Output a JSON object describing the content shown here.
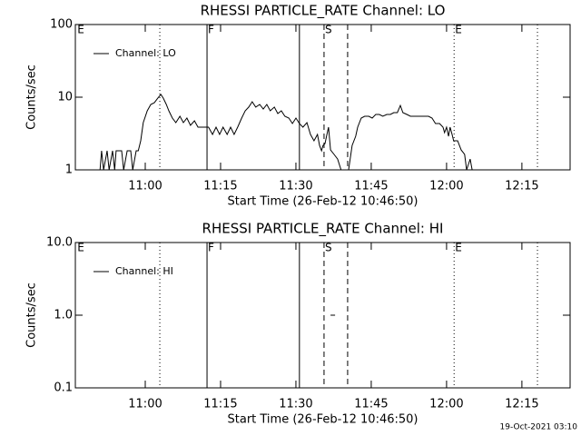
{
  "chart_data": [
    {
      "type": "line",
      "title": "RHESSI PARTICLE_RATE Channel: LO",
      "xlabel": "Start Time (26-Feb-12 10:46:50)",
      "ylabel": "Counts/sec",
      "xlim": [
        646.08,
        744.6
      ],
      "xticks": [
        {
          "value": 660,
          "label": "11:00"
        },
        {
          "value": 675,
          "label": "11:15"
        },
        {
          "value": 690,
          "label": "11:30"
        },
        {
          "value": 705,
          "label": "11:45"
        },
        {
          "value": 720,
          "label": "12:00"
        },
        {
          "value": 735,
          "label": "12:15"
        }
      ],
      "ylim": [
        1,
        100
      ],
      "yticks": [
        1,
        10,
        100
      ],
      "ylog": true,
      "legend": "upper left",
      "vlines": [
        {
          "x": 662.9,
          "style": "dotted"
        },
        {
          "x": 672.3,
          "style": "solid"
        },
        {
          "x": 690.7,
          "style": "solid"
        },
        {
          "x": 695.6,
          "style": "dashed"
        },
        {
          "x": 700.3,
          "style": "dashed"
        },
        {
          "x": 721.5,
          "style": "dotted"
        },
        {
          "x": 738.1,
          "style": "dotted"
        }
      ],
      "flags": [
        {
          "x": 646.3,
          "label": "E"
        },
        {
          "x": 672.3,
          "label": "F"
        },
        {
          "x": 695.6,
          "label": "S"
        },
        {
          "x": 721.5,
          "label": "E"
        }
      ],
      "series": [
        {
          "name": "Channel: LO",
          "color": "#000000",
          "x": [
            651.0,
            651.3,
            651.7,
            652.4,
            652.8,
            653.5,
            653.9,
            654.2,
            655.3,
            655.7,
            656.4,
            657.1,
            657.5,
            658.2,
            658.6,
            659.1,
            659.6,
            660.4,
            661.1,
            661.8,
            662.5,
            663.1,
            663.6,
            664.2,
            664.7,
            665.4,
            666.1,
            666.9,
            667.6,
            668.3,
            669.0,
            669.8,
            670.5,
            671.2,
            671.9,
            672.6,
            673.4,
            674.1,
            674.8,
            675.5,
            676.3,
            677.0,
            677.7,
            678.4,
            679.2,
            679.9,
            680.6,
            681.3,
            682.0,
            682.8,
            683.5,
            684.2,
            684.9,
            685.7,
            686.4,
            687.1,
            687.8,
            688.6,
            689.3,
            690.0,
            690.7,
            691.4,
            692.2,
            692.9,
            693.6,
            694.3,
            694.7,
            695.1,
            695.4,
            695.8,
            696.1,
            696.5,
            696.9,
            697.6,
            698.3,
            699.0,
            699.8,
            700.5,
            701.2,
            701.9,
            702.3,
            703.0,
            703.7,
            704.5,
            705.2,
            705.9,
            706.6,
            707.3,
            708.1,
            708.8,
            709.5,
            710.2,
            710.8,
            711.3,
            712.1,
            712.8,
            713.5,
            714.2,
            714.9,
            715.7,
            716.4,
            717.1,
            717.8,
            718.6,
            719.3,
            719.6,
            720.0,
            720.4,
            720.7,
            721.1,
            721.4,
            722.2,
            722.9,
            723.6,
            724.0,
            724.7,
            725.1
          ],
          "values": [
            1,
            1.83,
            1,
            1.83,
            1,
            1.83,
            1,
            1.83,
            1.83,
            1,
            1.83,
            1.83,
            1,
            1.83,
            1.83,
            2.51,
            4.47,
            6.49,
            7.94,
            8.4,
            9.7,
            10.9,
            9.7,
            7.94,
            6.49,
            5.16,
            4.47,
            5.46,
            4.47,
            5.16,
            4.1,
            4.73,
            3.87,
            3.87,
            3.87,
            3.87,
            3.07,
            3.87,
            3.07,
            3.87,
            3.07,
            3.87,
            3.07,
            3.87,
            5.16,
            6.49,
            7.3,
            8.66,
            7.3,
            7.94,
            6.87,
            7.94,
            6.49,
            7.3,
            5.96,
            6.49,
            5.46,
            5.16,
            4.34,
            5.16,
            4.34,
            3.87,
            4.47,
            3.07,
            2.51,
            3.07,
            2.17,
            1.83,
            2.17,
            2.3,
            2.9,
            3.87,
            1.88,
            1.63,
            1.41,
            1,
            1,
            1,
            2.17,
            2.9,
            3.87,
            5.16,
            5.46,
            5.46,
            5.16,
            5.79,
            5.79,
            5.46,
            5.79,
            5.79,
            6.13,
            6.13,
            7.7,
            6.13,
            5.79,
            5.46,
            5.46,
            5.46,
            5.46,
            5.46,
            5.46,
            5.16,
            4.34,
            4.34,
            3.87,
            3.25,
            3.87,
            2.9,
            3.87,
            3.07,
            2.51,
            2.51,
            1.88,
            1.63,
            1,
            1.41,
            1
          ]
        }
      ]
    },
    {
      "type": "line",
      "title": "RHESSI PARTICLE_RATE Channel: HI",
      "xlabel": "Start Time (26-Feb-12 10:46:50)",
      "ylabel": "Counts/sec",
      "xlim": [
        646.08,
        744.6
      ],
      "xticks": [
        {
          "value": 660,
          "label": "11:00"
        },
        {
          "value": 675,
          "label": "11:15"
        },
        {
          "value": 690,
          "label": "11:30"
        },
        {
          "value": 705,
          "label": "11:45"
        },
        {
          "value": 720,
          "label": "12:00"
        },
        {
          "value": 735,
          "label": "12:15"
        }
      ],
      "ylim": [
        0.1,
        10
      ],
      "yticks": [
        0.1,
        {
          "value": 1,
          "label": "1.0"
        },
        {
          "value": 10,
          "label": "10.0"
        }
      ],
      "ylog": true,
      "legend": "upper left",
      "vlines": [
        {
          "x": 662.9,
          "style": "dotted"
        },
        {
          "x": 672.3,
          "style": "solid"
        },
        {
          "x": 690.7,
          "style": "solid"
        },
        {
          "x": 695.6,
          "style": "dashed"
        },
        {
          "x": 700.3,
          "style": "dashed"
        },
        {
          "x": 721.5,
          "style": "dotted"
        },
        {
          "x": 738.1,
          "style": "dotted"
        }
      ],
      "flags": [
        {
          "x": 646.3,
          "label": "E"
        },
        {
          "x": 672.3,
          "label": "F"
        },
        {
          "x": 695.6,
          "label": "S"
        },
        {
          "x": 721.5,
          "label": "E"
        }
      ],
      "series": [
        {
          "name": "Channel: HI",
          "color": "#000000",
          "x": [
            696.9,
            697.8
          ],
          "values": [
            1,
            1
          ]
        }
      ]
    }
  ],
  "footer": "19-Oct-2021 03:10"
}
